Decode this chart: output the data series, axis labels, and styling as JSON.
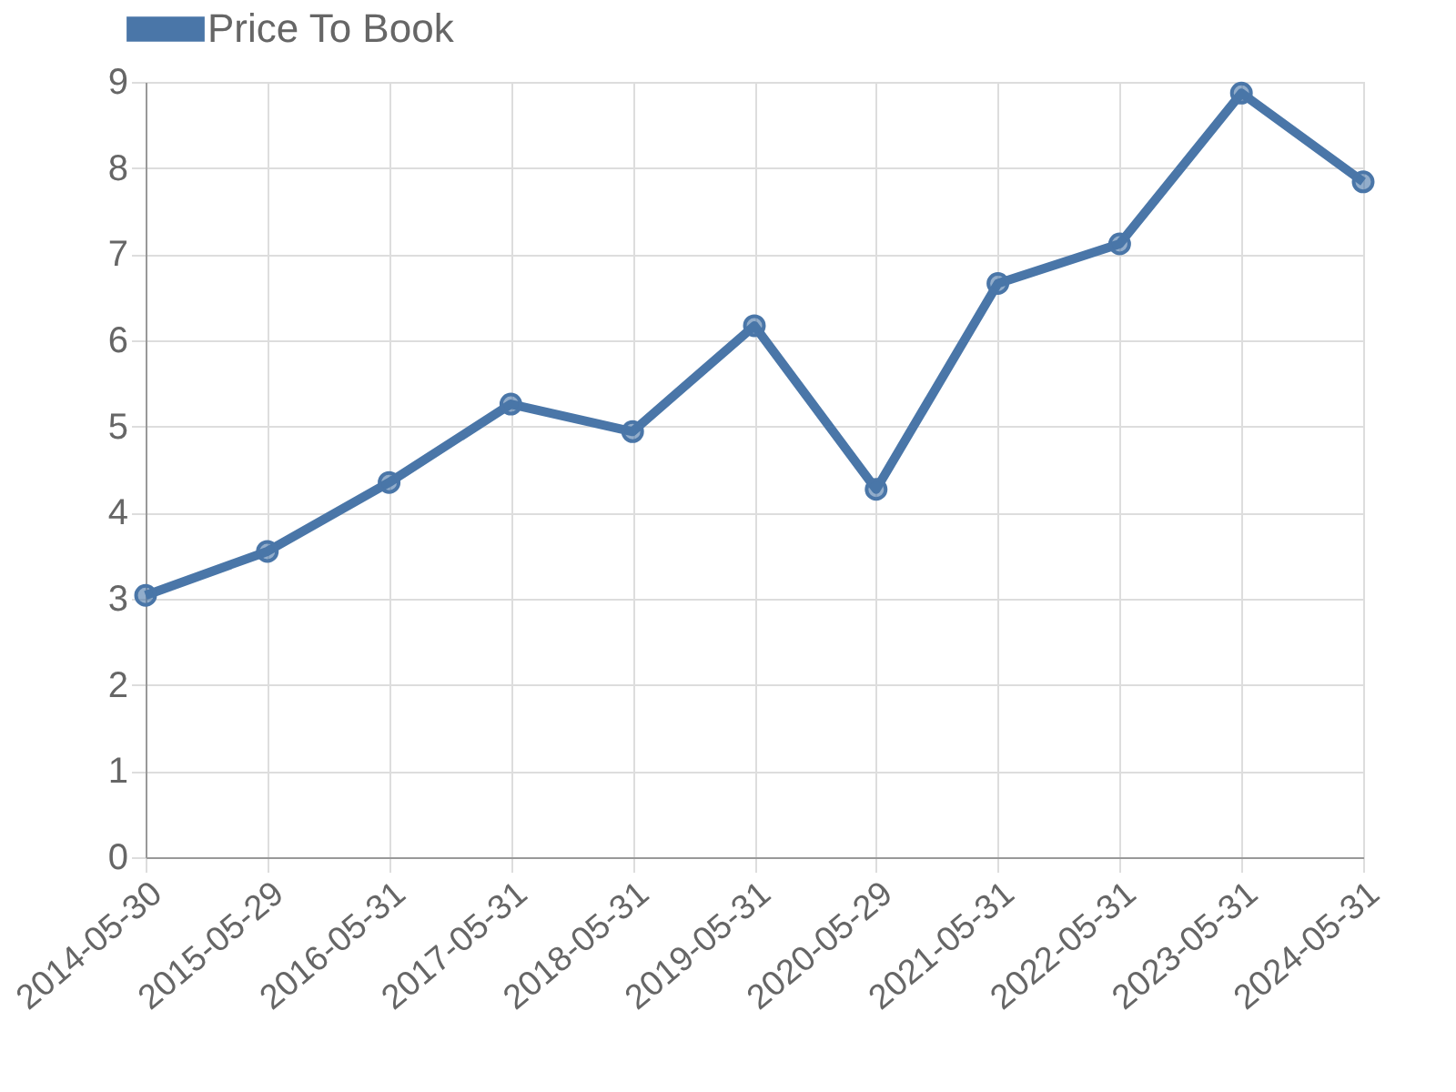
{
  "chart_data": {
    "type": "line",
    "categories": [
      "2014-05-30",
      "2015-05-29",
      "2016-05-31",
      "2017-05-31",
      "2018-05-31",
      "2019-05-31",
      "2020-05-29",
      "2021-05-31",
      "2022-05-31",
      "2023-05-31",
      "2024-05-31"
    ],
    "series": [
      {
        "name": "Price To Book",
        "color": "#4a76a8",
        "values": [
          3.04,
          3.55,
          4.35,
          5.26,
          4.94,
          6.17,
          4.27,
          6.66,
          7.12,
          8.87,
          7.84
        ]
      }
    ],
    "ylim": [
      0,
      9
    ],
    "yticks": [
      0,
      1,
      2,
      3,
      4,
      5,
      6,
      7,
      8,
      9
    ],
    "grid": true,
    "legend": "top",
    "marker": "circle",
    "line_style": "solid"
  }
}
